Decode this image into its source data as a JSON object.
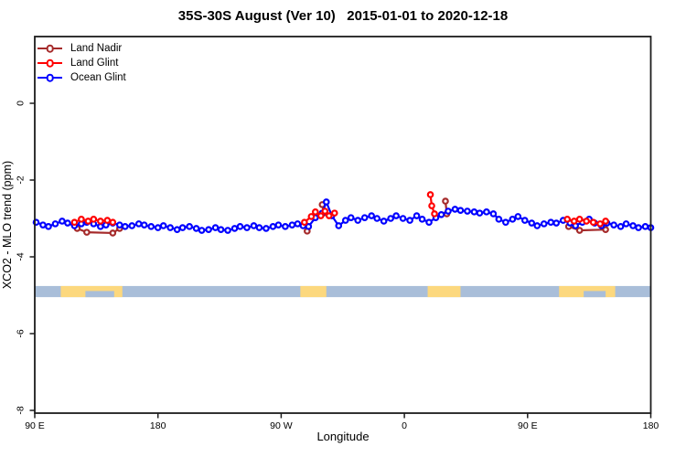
{
  "title": "35S-30S August (Ver 10)   2015-01-01 to 2020-12-18",
  "x_axis": {
    "label": "Longitude"
  },
  "y_axis": {
    "label": "XCO2 - MLO trend (ppm)"
  },
  "chart_data": {
    "type": "scatter",
    "title": "35S-30S August (Ver 10)   2015-01-01 to 2020-12-18",
    "xlabel": "Longitude",
    "ylabel": "XCO2 - MLO trend (ppm)",
    "x_axis_note": "x in degrees along axis, 0 = 90E at left edge, wrapping eastward to 180 at right edge",
    "xlim": [
      0,
      450
    ],
    "ylim": [
      -8.1,
      1.74
    ],
    "x_ticks": [
      {
        "pos": 0,
        "label": "90 E"
      },
      {
        "pos": 90,
        "label": "180"
      },
      {
        "pos": 180,
        "label": "90 W"
      },
      {
        "pos": 270,
        "label": "0"
      },
      {
        "pos": 360,
        "label": "90 E"
      },
      {
        "pos": 450,
        "label": "180"
      }
    ],
    "y_ticks": [
      {
        "pos": 0,
        "label": "0"
      },
      {
        "pos": -2,
        "label": "-2"
      },
      {
        "pos": -4,
        "label": "-4"
      },
      {
        "pos": -6,
        "label": "-6"
      },
      {
        "pos": -8,
        "label": "-8"
      }
    ],
    "series": [
      {
        "name": "Land Nadir",
        "color": "#A52A2A",
        "segments": [
          [
            [
              31,
              -3.26
            ],
            [
              38,
              -3.36
            ],
            [
              57,
              -3.38
            ],
            [
              62,
              -3.26
            ]
          ],
          [
            [
              199,
              -3.33
            ]
          ],
          [
            [
              210,
              -2.64
            ],
            [
              211,
              -2.86
            ]
          ],
          [
            [
              300,
              -2.55
            ],
            [
              301,
              -2.88
            ]
          ],
          [
            [
              390,
              -3.21
            ],
            [
              398,
              -3.31
            ],
            [
              417,
              -3.29
            ]
          ]
        ]
      },
      {
        "name": "Land Glint",
        "color": "#FF0000",
        "segments": [
          [
            [
              29,
              -3.1
            ],
            [
              34,
              -3.02
            ],
            [
              39,
              -3.07
            ],
            [
              43,
              -3.02
            ],
            [
              48,
              -3.07
            ],
            [
              53,
              -3.05
            ],
            [
              57,
              -3.1
            ]
          ],
          [
            [
              197,
              -3.1
            ],
            [
              202,
              -2.95
            ],
            [
              205,
              -2.83
            ],
            [
              209,
              -2.93
            ],
            [
              212,
              -2.81
            ],
            [
              215,
              -2.93
            ],
            [
              219,
              -2.86
            ]
          ],
          [
            [
              289,
              -2.38
            ],
            [
              290,
              -2.67
            ],
            [
              292,
              -2.88
            ]
          ],
          [
            [
              389,
              -3.02
            ],
            [
              394,
              -3.07
            ],
            [
              398,
              -3.02
            ],
            [
              403,
              -3.07
            ],
            [
              408,
              -3.1
            ],
            [
              413,
              -3.14
            ],
            [
              417,
              -3.07
            ]
          ]
        ]
      },
      {
        "name": "Ocean Glint",
        "color": "#0000FF",
        "segments": [
          [
            [
              1,
              -3.1
            ],
            [
              6,
              -3.17
            ],
            [
              10,
              -3.21
            ],
            [
              15,
              -3.14
            ],
            [
              20,
              -3.07
            ],
            [
              24,
              -3.12
            ],
            [
              29,
              -3.19
            ],
            [
              34,
              -3.14
            ],
            [
              38,
              -3.1
            ],
            [
              43,
              -3.14
            ],
            [
              48,
              -3.21
            ],
            [
              52,
              -3.17
            ],
            [
              57,
              -3.12
            ],
            [
              62,
              -3.17
            ],
            [
              66,
              -3.21
            ],
            [
              71,
              -3.19
            ],
            [
              76,
              -3.14
            ],
            [
              80,
              -3.17
            ],
            [
              85,
              -3.21
            ],
            [
              90,
              -3.24
            ],
            [
              94,
              -3.19
            ],
            [
              99,
              -3.24
            ],
            [
              104,
              -3.29
            ],
            [
              108,
              -3.24
            ],
            [
              113,
              -3.21
            ],
            [
              118,
              -3.26
            ],
            [
              122,
              -3.31
            ],
            [
              127,
              -3.29
            ],
            [
              132,
              -3.24
            ],
            [
              136,
              -3.29
            ],
            [
              141,
              -3.31
            ],
            [
              146,
              -3.26
            ],
            [
              150,
              -3.21
            ],
            [
              155,
              -3.24
            ],
            [
              160,
              -3.19
            ],
            [
              164,
              -3.24
            ],
            [
              169,
              -3.26
            ],
            [
              174,
              -3.21
            ],
            [
              178,
              -3.17
            ],
            [
              183,
              -3.21
            ],
            [
              188,
              -3.17
            ],
            [
              192,
              -3.14
            ],
            [
              196,
              -3.19
            ],
            [
              200,
              -3.21
            ],
            [
              205,
              -2.98
            ],
            [
              210,
              -2.86
            ],
            [
              213,
              -2.57
            ],
            [
              217,
              -2.93
            ],
            [
              222,
              -3.19
            ],
            [
              227,
              -3.05
            ],
            [
              231,
              -2.98
            ],
            [
              236,
              -3.05
            ],
            [
              241,
              -2.98
            ],
            [
              246,
              -2.93
            ],
            [
              250,
              -3.0
            ],
            [
              255,
              -3.07
            ],
            [
              260,
              -3.0
            ],
            [
              264,
              -2.93
            ],
            [
              269,
              -3.0
            ],
            [
              274,
              -3.05
            ],
            [
              279,
              -2.93
            ],
            [
              283,
              -3.02
            ],
            [
              288,
              -3.1
            ],
            [
              293,
              -2.98
            ],
            [
              297,
              -2.9
            ],
            [
              302,
              -2.81
            ],
            [
              307,
              -2.76
            ],
            [
              311,
              -2.79
            ],
            [
              316,
              -2.81
            ],
            [
              321,
              -2.83
            ],
            [
              325,
              -2.86
            ],
            [
              330,
              -2.83
            ],
            [
              335,
              -2.88
            ],
            [
              339,
              -3.02
            ],
            [
              344,
              -3.1
            ],
            [
              349,
              -3.02
            ],
            [
              353,
              -2.95
            ],
            [
              358,
              -3.05
            ],
            [
              363,
              -3.12
            ],
            [
              367,
              -3.19
            ],
            [
              372,
              -3.14
            ],
            [
              377,
              -3.1
            ],
            [
              381,
              -3.12
            ],
            [
              386,
              -3.05
            ],
            [
              391,
              -3.12
            ],
            [
              395,
              -3.19
            ],
            [
              400,
              -3.1
            ],
            [
              405,
              -3.02
            ],
            [
              409,
              -3.12
            ],
            [
              414,
              -3.19
            ],
            [
              418,
              -3.12
            ],
            [
              423,
              -3.17
            ],
            [
              428,
              -3.21
            ],
            [
              432,
              -3.14
            ],
            [
              437,
              -3.19
            ],
            [
              441,
              -3.24
            ],
            [
              446,
              -3.21
            ],
            [
              450,
              -3.24
            ]
          ]
        ]
      }
    ],
    "map_band": {
      "y_top": -4.76,
      "y_bottom": -5.05,
      "ocean_color": "#A9BED9",
      "land_color": "#FCD87E",
      "land_patches": [
        [
          19,
          64
        ],
        [
          194,
          213
        ],
        [
          287,
          311
        ],
        [
          383,
          424
        ]
      ],
      "ocean_notches": [
        [
          37,
          58
        ],
        [
          401,
          417
        ]
      ]
    },
    "legend_position": "top-left",
    "grid": false
  }
}
